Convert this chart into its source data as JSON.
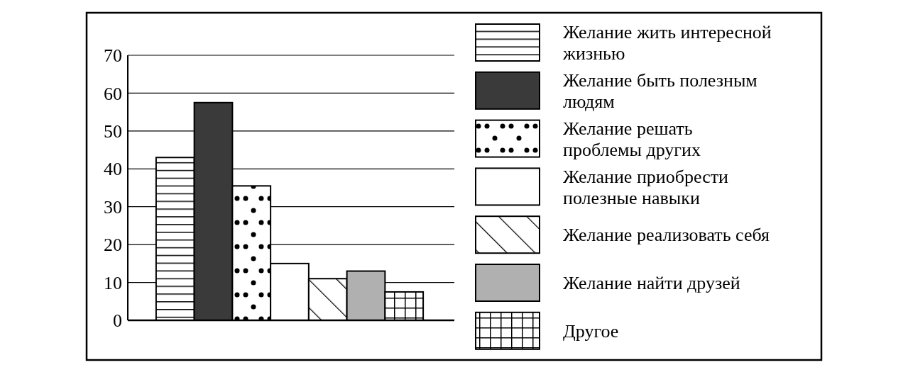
{
  "chart_data": {
    "type": "bar",
    "categories": [
      null
    ],
    "series": [
      {
        "name": "Желание жить интересной\nжизнью",
        "color": "#ffffff",
        "values": [
          43
        ]
      },
      {
        "name": "Желание быть полезным\nлюдям",
        "color": "#3a3a3a",
        "values": [
          57.5
        ]
      },
      {
        "name": "Желание решать\nпроблемы других",
        "color": "#ffffff",
        "values": [
          35.5
        ]
      },
      {
        "name": "Желание приобрести\nполезные навыки",
        "color": "#ffffff",
        "values": [
          15
        ]
      },
      {
        "name": "Желание реализовать себя",
        "color": "#ffffff",
        "values": [
          11
        ]
      },
      {
        "name": "Желание найти друзей",
        "color": "#b0b0b0",
        "values": [
          13
        ]
      },
      {
        "name": "Другое",
        "color": "#ffffff",
        "values": [
          7.5
        ]
      }
    ],
    "ylim": [
      0,
      70
    ],
    "yticks": [
      0,
      10,
      20,
      30,
      40,
      50,
      60,
      70
    ],
    "grid": "y",
    "legend": "right",
    "tick_labels": "y"
  }
}
